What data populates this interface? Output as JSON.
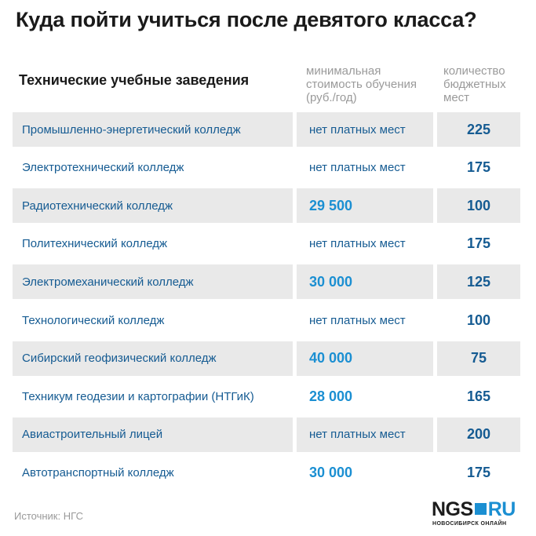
{
  "title": "Куда пойти учиться после девятого класса?",
  "header": {
    "name": "Технические учебные заведения",
    "cost_lines": [
      "минимальная",
      "стоимость обучения",
      "(руб./год)"
    ],
    "budget_lines": [
      "количество",
      "бюджетных",
      "мест"
    ]
  },
  "chart_data": {
    "type": "table",
    "columns": [
      "Технические учебные заведения",
      "минимальная стоимость обучения (руб./год)",
      "количество бюджетных мест"
    ],
    "rows": [
      {
        "name": "Промышленно-энергетический колледж",
        "cost": "нет платных мест",
        "budget": "225"
      },
      {
        "name": "Электротехнический колледж",
        "cost": "нет платных мест",
        "budget": "175"
      },
      {
        "name": "Радиотехнический колледж",
        "cost": "29 500",
        "budget": "100"
      },
      {
        "name": "Политехнический колледж",
        "cost": "нет платных мест",
        "budget": "175"
      },
      {
        "name": "Электромеханический колледж",
        "cost": "30 000",
        "budget": "125"
      },
      {
        "name": "Технологический колледж",
        "cost": "нет платных мест",
        "budget": "100"
      },
      {
        "name": "Сибирский геофизический колледж",
        "cost": "40 000",
        "budget": "75"
      },
      {
        "name": "Техникум геодезии и картографии (НТГиК)",
        "cost": "28 000",
        "budget": "165"
      },
      {
        "name": "Авиастроительный лицей",
        "cost": "нет платных мест",
        "budget": "200"
      },
      {
        "name": "Автотранспортный колледж",
        "cost": "30 000",
        "budget": "175"
      }
    ]
  },
  "source": "Источник: НГС",
  "logo": {
    "main_left": "NGS",
    "main_right": "RU",
    "subtitle": "НОВОСИБИРСК ОНЛАЙН"
  },
  "colors": {
    "accent": "#1b8fd2",
    "text_blue": "#155b92",
    "shade": "#e9e9e9",
    "muted": "#9a9a9a"
  }
}
